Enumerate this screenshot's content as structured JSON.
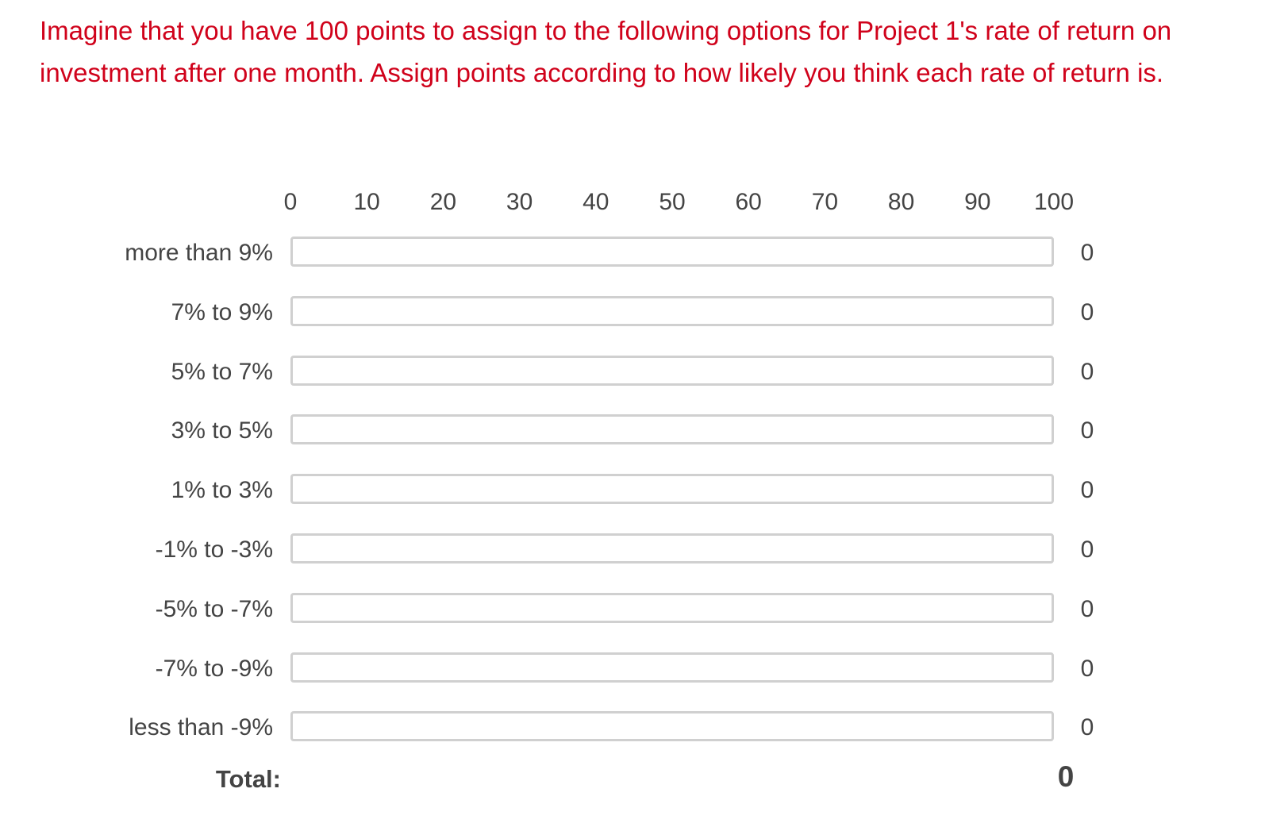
{
  "question": {
    "text": "Imagine that you have 100 points to assign to the following options for Project 1's rate of return on investment after one month. Assign points according to how likely you think each rate of return is."
  },
  "scale": {
    "ticks": [
      "0",
      "10",
      "20",
      "30",
      "40",
      "50",
      "60",
      "70",
      "80",
      "90",
      "100"
    ],
    "min": 0,
    "max": 100
  },
  "rows": [
    {
      "label": "more than 9%",
      "value": 0
    },
    {
      "label": "7% to 9%",
      "value": 0
    },
    {
      "label": "5% to 7%",
      "value": 0
    },
    {
      "label": "3% to 5%",
      "value": 0
    },
    {
      "label": "1% to 3%",
      "value": 0
    },
    {
      "label": "-1% to -3%",
      "value": 0
    },
    {
      "label": "-5% to -7%",
      "value": 0
    },
    {
      "label": "-7% to -9%",
      "value": 0
    },
    {
      "label": "less than -9%",
      "value": 0
    }
  ],
  "total": {
    "label": "Total:",
    "value": "0"
  },
  "colors": {
    "question_text": "#d0021b",
    "text": "#444444",
    "track_border": "#d0d0d0"
  }
}
